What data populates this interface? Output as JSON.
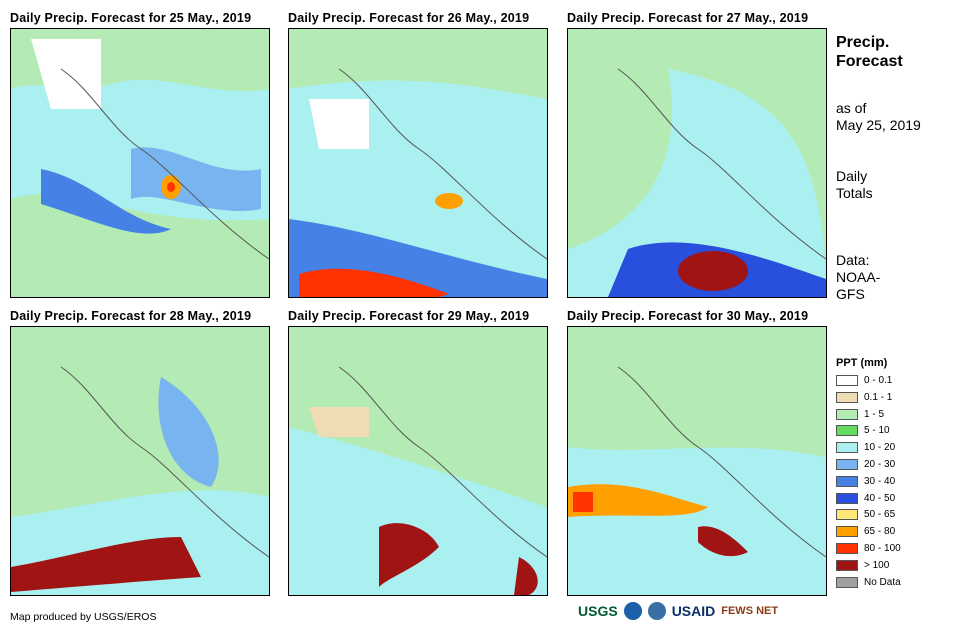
{
  "panels": [
    {
      "title": "Daily Precip. Forecast for 25 May., 2019"
    },
    {
      "title": "Daily Precip. Forecast for 26 May., 2019"
    },
    {
      "title": "Daily Precip. Forecast for 27 May., 2019"
    },
    {
      "title": "Daily Precip. Forecast for 28 May., 2019"
    },
    {
      "title": "Daily Precip. Forecast for 29 May., 2019"
    },
    {
      "title": "Daily Precip. Forecast for 30 May., 2019"
    }
  ],
  "side": {
    "title_line1": "Precip.",
    "title_line2": "Forecast",
    "asof_line1": "as of",
    "asof_line2": "May 25, 2019",
    "totals_line1": "Daily",
    "totals_line2": "Totals",
    "data_line1": "Data:",
    "data_line2": "NOAA-",
    "data_line3": "GFS"
  },
  "legend": {
    "title": "PPT (mm)",
    "items": [
      {
        "label": "0 - 0.1",
        "color": "#ffffff"
      },
      {
        "label": "0.1 - 1",
        "color": "#f0dcb4"
      },
      {
        "label": "1 - 5",
        "color": "#b4ebb4"
      },
      {
        "label": "5 - 10",
        "color": "#64dc64"
      },
      {
        "label": "10 - 20",
        "color": "#aaf0f0"
      },
      {
        "label": "20 - 30",
        "color": "#78b4f0"
      },
      {
        "label": "30 - 40",
        "color": "#4682e6"
      },
      {
        "label": "40 - 50",
        "color": "#2850dc"
      },
      {
        "label": "50 - 65",
        "color": "#ffe678"
      },
      {
        "label": "65 - 80",
        "color": "#ffa000"
      },
      {
        "label": "80 - 100",
        "color": "#ff3200"
      },
      {
        "label": "> 100",
        "color": "#a01414"
      },
      {
        "label": "No Data",
        "color": "#a0a0a0"
      }
    ]
  },
  "footer": {
    "credit": "Map produced by USGS/EROS",
    "logos": [
      "USGS",
      "USAID",
      "FEWS NET"
    ]
  }
}
